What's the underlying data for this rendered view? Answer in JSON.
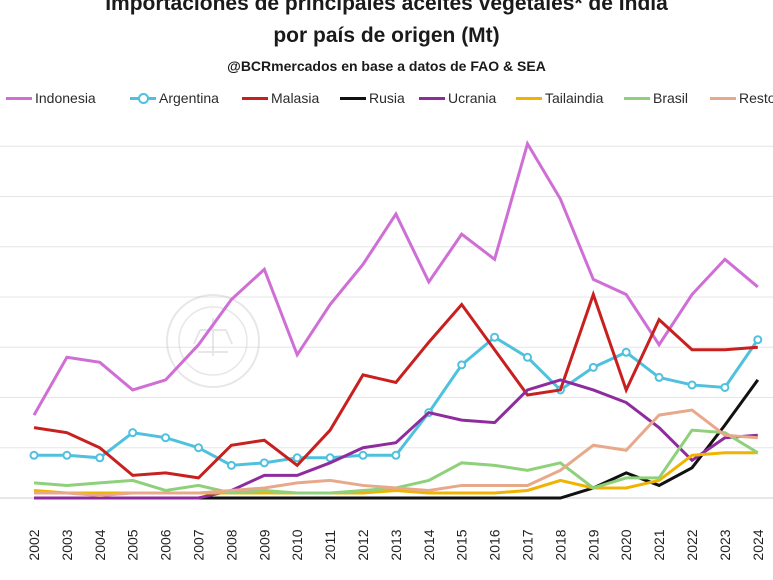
{
  "header": {
    "title_line1": "Importaciones de principales aceites vegetales* de India",
    "title_line2": "por país de origen (Mt)",
    "source": "@BCRmercados en base a datos de FAO & SEA"
  },
  "chart_data": {
    "type": "line",
    "title": "Importaciones de principales aceites vegetales* de India por país de origen (Mt)",
    "xlabel": "",
    "ylabel": "",
    "ylim": [
      0,
      7
    ],
    "grid": true,
    "legend_position": "top",
    "x": [
      "2002",
      "2003",
      "2004",
      "2005",
      "2006",
      "2007",
      "2008",
      "2009",
      "2010",
      "2011",
      "2012",
      "2013",
      "2014",
      "2015",
      "2016",
      "2017",
      "2018",
      "2019",
      "2020",
      "2021",
      "2022",
      "2023",
      "2024"
    ],
    "series": [
      {
        "name": "Indonesia",
        "color": "#cf6fd6",
        "marker": false,
        "values": [
          1.65,
          2.8,
          2.7,
          2.15,
          2.35,
          3.05,
          3.95,
          4.55,
          2.85,
          3.85,
          4.65,
          5.65,
          4.3,
          5.25,
          4.75,
          7.05,
          5.95,
          4.35,
          4.05,
          3.05,
          4.05,
          4.75,
          4.2
        ]
      },
      {
        "name": "Argentina",
        "color": "#4fc1de",
        "marker": true,
        "values": [
          0.85,
          0.85,
          0.8,
          1.3,
          1.2,
          1.0,
          0.65,
          0.7,
          0.8,
          0.8,
          0.85,
          0.85,
          1.7,
          2.65,
          3.2,
          2.8,
          2.15,
          2.6,
          2.9,
          2.4,
          2.25,
          2.2,
          3.15
        ]
      },
      {
        "name": "Malasia",
        "color": "#c8201e",
        "marker": false,
        "values": [
          1.4,
          1.3,
          1.0,
          0.45,
          0.5,
          0.4,
          1.05,
          1.15,
          0.65,
          1.35,
          2.45,
          2.3,
          3.1,
          3.85,
          2.95,
          2.05,
          2.15,
          4.05,
          2.15,
          3.55,
          2.95,
          2.95,
          3.0
        ]
      },
      {
        "name": "Rusia",
        "color": "#111111",
        "marker": false,
        "values": [
          0,
          0,
          0,
          0,
          0,
          0,
          0,
          0,
          0,
          0,
          0,
          0,
          0,
          0,
          0,
          0,
          0,
          0.2,
          0.5,
          0.25,
          0.6,
          1.45,
          2.35
        ]
      },
      {
        "name": "Ucrania",
        "color": "#8e2c9e",
        "marker": false,
        "values": [
          0,
          0,
          0,
          0,
          0,
          0,
          0.15,
          0.45,
          0.45,
          0.7,
          1.0,
          1.1,
          1.7,
          1.55,
          1.5,
          2.15,
          2.35,
          2.15,
          1.9,
          1.4,
          0.75,
          1.2,
          1.25
        ]
      },
      {
        "name": "Tailaindia",
        "color": "#f0b400",
        "marker": false,
        "values": [
          0.15,
          0.1,
          0.1,
          0.1,
          0.1,
          0.1,
          0.1,
          0.1,
          0.1,
          0.1,
          0.1,
          0.15,
          0.1,
          0.1,
          0.1,
          0.15,
          0.35,
          0.2,
          0.2,
          0.35,
          0.85,
          0.9,
          0.9
        ]
      },
      {
        "name": "Brasil",
        "color": "#8fd07a",
        "marker": false,
        "values": [
          0.3,
          0.25,
          0.3,
          0.35,
          0.15,
          0.25,
          0.1,
          0.15,
          0.1,
          0.1,
          0.15,
          0.2,
          0.35,
          0.7,
          0.65,
          0.55,
          0.7,
          0.2,
          0.4,
          0.4,
          1.35,
          1.3,
          0.9
        ]
      },
      {
        "name": "Resto",
        "color": "#e8a98a",
        "marker": false,
        "values": [
          0.1,
          0.1,
          0.05,
          0.1,
          0.1,
          0.1,
          0.15,
          0.2,
          0.3,
          0.35,
          0.25,
          0.2,
          0.15,
          0.25,
          0.25,
          0.25,
          0.55,
          1.05,
          0.95,
          1.65,
          1.75,
          1.25,
          1.2
        ]
      }
    ]
  }
}
